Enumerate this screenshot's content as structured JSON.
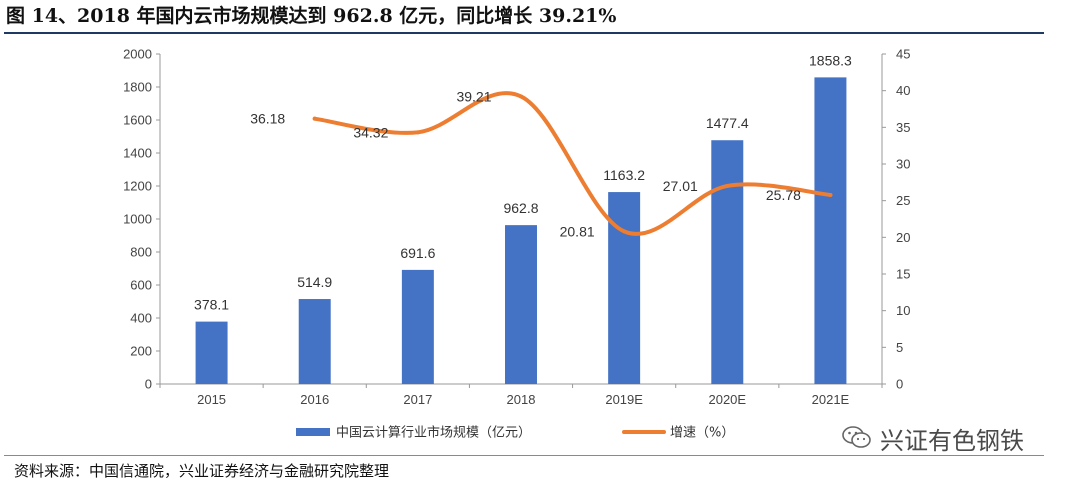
{
  "title": "图 14、2018 年国内云市场规模达到 962.8 亿元，同比增长 39.21%",
  "source": "资料来源：中国信通院，兴业证券经济与金融研究院整理",
  "watermark": {
    "text": "兴证有色钢铁",
    "icon": "wechat-icon"
  },
  "colors": {
    "bar": "#4472c4",
    "line": "#ed7d31",
    "title_rule": "#1f3864"
  },
  "chart_data": {
    "type": "bar+line",
    "categories": [
      "2015",
      "2016",
      "2017",
      "2018",
      "2019E",
      "2020E",
      "2021E"
    ],
    "series": [
      {
        "name": "中国云计算行业市场规模（亿元）",
        "type": "bar",
        "axis": "left",
        "values": [
          378.1,
          514.9,
          691.6,
          962.8,
          1163.2,
          1477.4,
          1858.3
        ],
        "labels": [
          "378.1",
          "514.9",
          "691.6",
          "962.8",
          "1163.2",
          "1477.4",
          "1858.3"
        ]
      },
      {
        "name": "增速（%）",
        "type": "line",
        "smooth": true,
        "axis": "right",
        "values": [
          null,
          36.18,
          34.32,
          39.21,
          20.81,
          27.01,
          25.78
        ],
        "labels": [
          "",
          "36.18",
          "34.32",
          "39.21",
          "20.81",
          "27.01",
          "25.78"
        ]
      }
    ],
    "y_left": {
      "min": 0,
      "max": 2000,
      "step": 200,
      "ticks": [
        "0",
        "200",
        "400",
        "600",
        "800",
        "1000",
        "1200",
        "1400",
        "1600",
        "1800",
        "2000"
      ]
    },
    "y_right": {
      "min": 0,
      "max": 45,
      "step": 5,
      "ticks": [
        "0",
        "5",
        "10",
        "15",
        "20",
        "25",
        "30",
        "35",
        "40",
        "45"
      ]
    },
    "grid": false,
    "legend_position": "bottom"
  }
}
